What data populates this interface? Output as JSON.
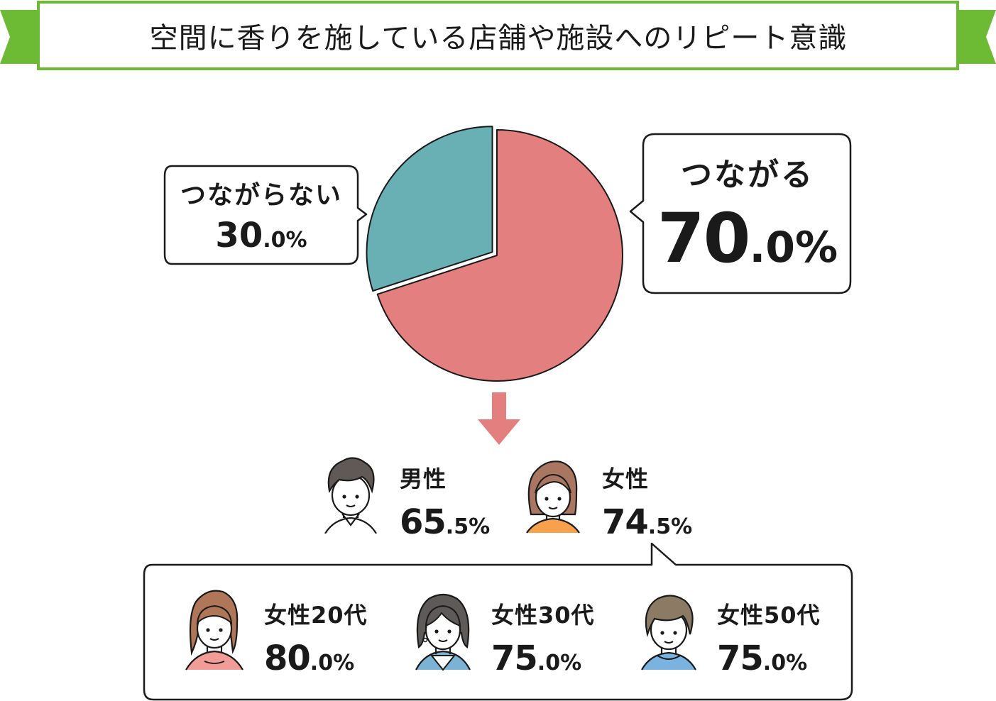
{
  "title": "空間に香りを施している店舗や施設へのリピート意識",
  "colors": {
    "banner_green": "#6dbb34",
    "pie_connect": "#e47f80",
    "pie_not_connect": "#69b0b4",
    "arrow": "#e47f80"
  },
  "chart_data": {
    "type": "pie",
    "title": "空間に香りを施している店舗や施設へのリピート意識",
    "slices": [
      {
        "label": "つながる",
        "value": 70.0,
        "int": "70",
        "dec": ".0%"
      },
      {
        "label": "つながらない",
        "value": 30.0,
        "int": "30",
        "dec": ".0%"
      }
    ]
  },
  "gender": [
    {
      "label": "男性",
      "value": 65.5,
      "int": "65",
      "dec": ".5%",
      "icon": "man-avatar-icon"
    },
    {
      "label": "女性",
      "value": 74.5,
      "int": "74",
      "dec": ".5%",
      "icon": "woman-avatar-icon"
    }
  ],
  "female_age": [
    {
      "label": "女性20代",
      "value": 80.0,
      "int": "80",
      "dec": ".0%",
      "icon": "woman-20s-avatar-icon"
    },
    {
      "label": "女性30代",
      "value": 75.0,
      "int": "75",
      "dec": ".0%",
      "icon": "woman-30s-avatar-icon"
    },
    {
      "label": "女性50代",
      "value": 75.0,
      "int": "75",
      "dec": ".0%",
      "icon": "woman-50s-avatar-icon"
    }
  ]
}
